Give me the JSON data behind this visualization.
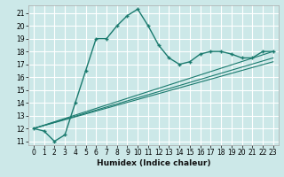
{
  "title": "",
  "xlabel": "Humidex (Indice chaleur)",
  "bg_color": "#cce8e8",
  "grid_color": "#ffffff",
  "line_color": "#1a7a6e",
  "xlim": [
    -0.5,
    23.5
  ],
  "ylim": [
    10.7,
    21.6
  ],
  "yticks": [
    11,
    12,
    13,
    14,
    15,
    16,
    17,
    18,
    19,
    20,
    21
  ],
  "xticks": [
    0,
    1,
    2,
    3,
    4,
    5,
    6,
    7,
    8,
    9,
    10,
    11,
    12,
    13,
    14,
    15,
    16,
    17,
    18,
    19,
    20,
    21,
    22,
    23
  ],
  "curve1_x": [
    0,
    1,
    2,
    3,
    4,
    5,
    6,
    7,
    8,
    9,
    10,
    11,
    12,
    13,
    14,
    15,
    16,
    17,
    18,
    19,
    20,
    21,
    22,
    23
  ],
  "curve1_y": [
    12.0,
    11.8,
    11.0,
    11.5,
    14.0,
    16.5,
    19.0,
    19.0,
    20.0,
    20.8,
    21.3,
    20.0,
    18.5,
    17.5,
    17.0,
    17.2,
    17.8,
    18.0,
    18.0,
    17.8,
    17.5,
    17.5,
    18.0,
    18.0
  ],
  "line1_x": [
    0,
    23
  ],
  "line1_y": [
    12.0,
    18.0
  ],
  "line2_x": [
    0,
    23
  ],
  "line2_y": [
    12.0,
    17.5
  ],
  "line3_x": [
    0,
    23
  ],
  "line3_y": [
    12.0,
    17.2
  ],
  "tick_fontsize": 5.5,
  "xlabel_fontsize": 6.5,
  "spine_color": "#aaaaaa"
}
